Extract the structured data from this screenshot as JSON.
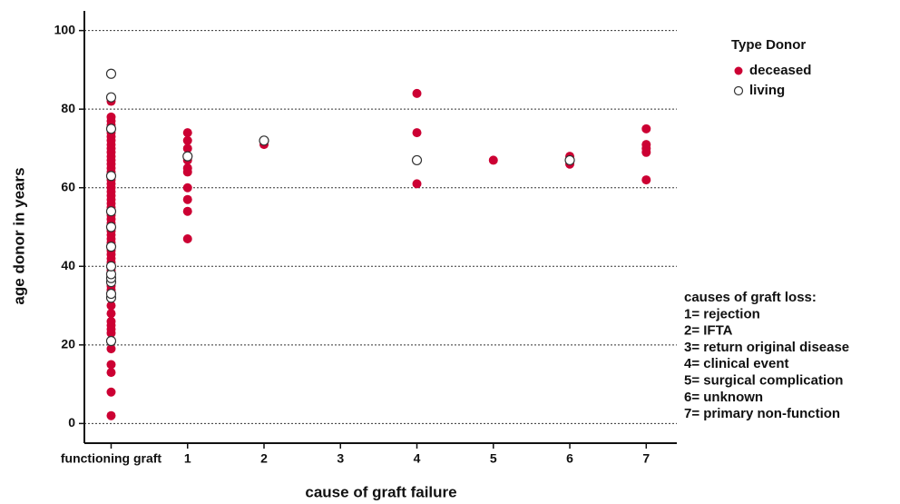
{
  "chart_data": {
    "type": "scatter",
    "x_label": "cause of graft failure",
    "y_label": "age donor in years",
    "xlim": [
      -0.35,
      7.4
    ],
    "ylim": [
      -5,
      105
    ],
    "xticks": [
      {
        "value": 0,
        "label": "functioning graft"
      },
      1,
      2,
      3,
      4,
      5,
      6,
      7
    ],
    "yticks": [
      0,
      20,
      40,
      60,
      80,
      100
    ],
    "grid": true,
    "legend_title": "Type Donor",
    "legend_position": "upper right",
    "series": [
      {
        "name": "deceased",
        "color": "#cc0033",
        "filled": true,
        "x": [
          0,
          0,
          0,
          0,
          0,
          0,
          0,
          0,
          0,
          0,
          0,
          0,
          0,
          0,
          0,
          0,
          0,
          0,
          0,
          0,
          0,
          0,
          0,
          0,
          0,
          0,
          0,
          0,
          0,
          0,
          0,
          0,
          0,
          0,
          0,
          0,
          0,
          0,
          0,
          0,
          0,
          0,
          0,
          0,
          0,
          0,
          0,
          0,
          0,
          0,
          0,
          0,
          0,
          0,
          0,
          0,
          0,
          0,
          1,
          1,
          1,
          1,
          1,
          1,
          1,
          1,
          1,
          1,
          1,
          2,
          4,
          4,
          4,
          5,
          6,
          6,
          6,
          7,
          7,
          7,
          7,
          7
        ],
        "values": [
          2,
          8,
          13,
          15,
          19,
          21,
          23,
          24,
          25,
          26,
          28,
          30,
          32,
          34,
          36,
          38,
          40,
          41,
          42,
          43,
          44,
          45,
          46,
          47,
          48,
          49,
          50,
          51,
          52,
          53,
          54,
          55,
          56,
          57,
          58,
          59,
          60,
          61,
          62,
          63,
          64,
          65,
          66,
          67,
          68,
          69,
          70,
          71,
          72,
          73,
          74,
          75,
          76,
          77,
          78,
          82,
          35,
          39,
          74,
          72,
          70,
          68,
          67,
          65,
          64,
          60,
          57,
          54,
          47,
          71,
          84,
          74,
          61,
          67,
          66,
          67,
          68,
          75,
          71,
          70,
          69,
          62
        ]
      },
      {
        "name": "living",
        "color": "#333333",
        "filled": false,
        "x": [
          0,
          0,
          0,
          0,
          0,
          0,
          0,
          0,
          0,
          0,
          0,
          0,
          0,
          0,
          1,
          2,
          4,
          6
        ],
        "values": [
          89,
          83,
          21,
          32,
          33,
          36,
          37,
          38,
          40,
          45,
          50,
          54,
          63,
          75,
          68,
          72,
          67,
          67
        ]
      }
    ],
    "annotation": [
      "causes of graft loss:",
      "1= rejection",
      "2= IFTA",
      "3= return original disease",
      "4= clinical event",
      "5= surgical complication",
      "6= unknown",
      "7= primary non-function"
    ]
  }
}
